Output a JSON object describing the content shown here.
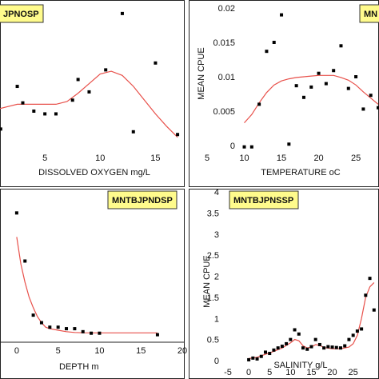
{
  "chart_data": [
    {
      "type": "scatter",
      "tag": "JPNOSP",
      "xlabel": "DISSOLVED OXYGEN mg/L",
      "ylabel": "",
      "xlim": [
        0,
        17.5
      ],
      "ylim": [
        0,
        1
      ],
      "xticks": [
        "5",
        "10",
        "15"
      ],
      "points": [
        [
          1,
          0.12
        ],
        [
          2.5,
          0.43
        ],
        [
          3,
          0.31
        ],
        [
          4,
          0.25
        ],
        [
          5,
          0.23
        ],
        [
          6,
          0.23
        ],
        [
          7.5,
          0.33
        ],
        [
          8,
          0.48
        ],
        [
          9,
          0.39
        ],
        [
          10.5,
          0.55
        ],
        [
          12,
          0.96
        ],
        [
          13,
          0.1
        ],
        [
          15,
          0.6
        ],
        [
          17,
          0.08
        ]
      ],
      "fit": [
        [
          0.5,
          0.26
        ],
        [
          1.5,
          0.28
        ],
        [
          2.5,
          0.3
        ],
        [
          4,
          0.3
        ],
        [
          5,
          0.3
        ],
        [
          6,
          0.3
        ],
        [
          7,
          0.32
        ],
        [
          8,
          0.38
        ],
        [
          9,
          0.45
        ],
        [
          10,
          0.52
        ],
        [
          11,
          0.54
        ],
        [
          12,
          0.51
        ],
        [
          13,
          0.43
        ],
        [
          14,
          0.33
        ],
        [
          15,
          0.23
        ],
        [
          16,
          0.14
        ],
        [
          17,
          0.06
        ]
      ]
    },
    {
      "type": "scatter",
      "tag": "MN",
      "xlabel": "TEMPERATURE oC",
      "ylabel": "MEAN CPUE",
      "xlim": [
        5,
        28
      ],
      "ylim": [
        0,
        0.02
      ],
      "xticks": [
        "5",
        "10",
        "15",
        "20",
        "25"
      ],
      "yticks": [
        "0",
        "0.005",
        "0.01",
        "0.015",
        "0.02"
      ],
      "points": [
        [
          10,
          -0.0002
        ],
        [
          11,
          -0.0002
        ],
        [
          12,
          0.006
        ],
        [
          13,
          0.0137
        ],
        [
          14,
          0.015
        ],
        [
          15,
          0.019
        ],
        [
          16,
          0.0002
        ],
        [
          17,
          0.0087
        ],
        [
          18,
          0.007
        ],
        [
          19,
          0.0085
        ],
        [
          20,
          0.0105
        ],
        [
          21,
          0.009
        ],
        [
          22,
          0.0109
        ],
        [
          23,
          0.0145
        ],
        [
          24,
          0.0083
        ],
        [
          25,
          0.01
        ],
        [
          26,
          0.0053
        ],
        [
          27,
          0.0073
        ],
        [
          28,
          0.0055
        ]
      ],
      "fit": [
        [
          10,
          0.0033
        ],
        [
          11,
          0.0045
        ],
        [
          12,
          0.0062
        ],
        [
          13,
          0.0077
        ],
        [
          14,
          0.0088
        ],
        [
          15,
          0.0094
        ],
        [
          16,
          0.0097
        ],
        [
          17,
          0.0099
        ],
        [
          18,
          0.01
        ],
        [
          19,
          0.0101
        ],
        [
          20,
          0.0102
        ],
        [
          21,
          0.0102
        ],
        [
          22,
          0.0102
        ],
        [
          23,
          0.0099
        ],
        [
          24,
          0.0095
        ],
        [
          25,
          0.0088
        ],
        [
          26,
          0.0078
        ],
        [
          27,
          0.0069
        ],
        [
          28,
          0.006
        ]
      ]
    },
    {
      "type": "scatter",
      "tag": "MNTBJPNDSP",
      "xlabel": "DEPTH m",
      "ylabel": "",
      "xlim": [
        -2.5,
        20
      ],
      "ylim": [
        0,
        1
      ],
      "xticks": [
        "0",
        "5",
        "10",
        "15",
        "20"
      ],
      "points": [
        [
          0,
          0.86
        ],
        [
          1,
          0.54
        ],
        [
          2,
          0.18
        ],
        [
          3,
          0.13
        ],
        [
          4,
          0.1
        ],
        [
          5,
          0.1
        ],
        [
          6,
          0.09
        ],
        [
          7,
          0.09
        ],
        [
          8,
          0.07
        ],
        [
          9,
          0.06
        ],
        [
          10,
          0.06
        ],
        [
          17,
          0.05
        ]
      ],
      "fit": [
        [
          0,
          0.7
        ],
        [
          0.5,
          0.52
        ],
        [
          1,
          0.4
        ],
        [
          1.5,
          0.3
        ],
        [
          2,
          0.23
        ],
        [
          2.5,
          0.17
        ],
        [
          3,
          0.13
        ],
        [
          3.5,
          0.1
        ],
        [
          4,
          0.09
        ],
        [
          5,
          0.08
        ],
        [
          6,
          0.07
        ],
        [
          7,
          0.065
        ],
        [
          8,
          0.063
        ],
        [
          10,
          0.062
        ],
        [
          13,
          0.062
        ],
        [
          17,
          0.062
        ]
      ]
    },
    {
      "type": "scatter",
      "tag": "MNTBJPNSSP",
      "xlabel": "SALINITY   g/L",
      "ylabel": "MEAN CPUE",
      "xlim": [
        -5,
        31
      ],
      "ylim": [
        0,
        4
      ],
      "xticks": [
        "-5",
        "0",
        "5",
        "10",
        "15",
        "20",
        "25"
      ],
      "yticks": [
        "0",
        "0.5",
        "1",
        "1.5",
        "2",
        "2.5",
        "3",
        "3.5",
        "4"
      ],
      "points": [
        [
          0,
          0.02
        ],
        [
          1,
          0.06
        ],
        [
          2,
          0.04
        ],
        [
          3,
          0.1
        ],
        [
          4,
          0.2
        ],
        [
          5,
          0.17
        ],
        [
          6,
          0.25
        ],
        [
          7,
          0.3
        ],
        [
          8,
          0.34
        ],
        [
          9,
          0.4
        ],
        [
          10,
          0.5
        ],
        [
          11,
          0.73
        ],
        [
          12,
          0.63
        ],
        [
          13,
          0.3
        ],
        [
          14,
          0.27
        ],
        [
          15,
          0.33
        ],
        [
          16,
          0.5
        ],
        [
          17,
          0.38
        ],
        [
          18,
          0.3
        ],
        [
          19,
          0.33
        ],
        [
          20,
          0.32
        ],
        [
          21,
          0.31
        ],
        [
          22,
          0.3
        ],
        [
          23,
          0.35
        ],
        [
          24,
          0.5
        ],
        [
          25,
          0.6
        ],
        [
          26,
          0.7
        ],
        [
          27,
          0.75
        ],
        [
          28,
          1.55
        ],
        [
          29,
          1.95
        ],
        [
          30,
          1.2
        ]
      ],
      "fit": [
        [
          0,
          0.05
        ],
        [
          2,
          0.08
        ],
        [
          4,
          0.15
        ],
        [
          6,
          0.22
        ],
        [
          8,
          0.3
        ],
        [
          10,
          0.42
        ],
        [
          11,
          0.5
        ],
        [
          12,
          0.47
        ],
        [
          13,
          0.35
        ],
        [
          14,
          0.3
        ],
        [
          15,
          0.32
        ],
        [
          16,
          0.38
        ],
        [
          17,
          0.36
        ],
        [
          18,
          0.31
        ],
        [
          20,
          0.28
        ],
        [
          22,
          0.28
        ],
        [
          24,
          0.32
        ],
        [
          25,
          0.4
        ],
        [
          26,
          0.6
        ],
        [
          27,
          1.0
        ],
        [
          28,
          1.5
        ],
        [
          29,
          1.75
        ],
        [
          30,
          1.85
        ]
      ]
    }
  ]
}
